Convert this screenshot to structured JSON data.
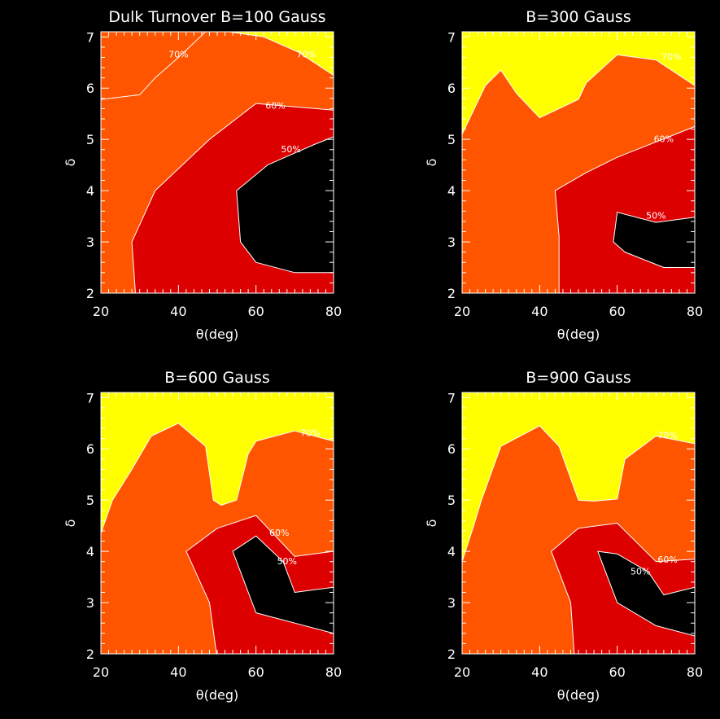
{
  "colors": {
    "background": "#000000",
    "lt50": "#000000",
    "c50_60": "#dd0000",
    "c60_70": "#ff5500",
    "gt70": "#ffff00",
    "axes": "#ffffff"
  },
  "chart_data": [
    {
      "type": "contour",
      "title": "Dulk Turnover B=100 Gauss",
      "xlabel": "θ(deg)",
      "ylabel": "δ",
      "xlim": [
        20,
        80
      ],
      "ylim": [
        2,
        7.1
      ],
      "xticks": [
        20,
        40,
        60,
        80
      ],
      "yticks": [
        2,
        3,
        4,
        5,
        6,
        7
      ],
      "levels": [
        "50%",
        "60%",
        "70%"
      ],
      "regions": {
        "gt70": [
          [
            20,
            5.78
          ],
          [
            30,
            5.87
          ],
          [
            34,
            6.2
          ],
          [
            40,
            6.6
          ],
          [
            47,
            7.1
          ],
          [
            80,
            7.1
          ],
          [
            80,
            6.25
          ],
          [
            71,
            6.7
          ],
          [
            62,
            7.0
          ],
          [
            53,
            7.1
          ],
          [
            47,
            7.1
          ],
          [
            40,
            6.6
          ],
          [
            34,
            6.2
          ],
          [
            30,
            5.87
          ],
          [
            20,
            5.78
          ],
          [
            20,
            7.1
          ]
        ],
        "lt60": [
          [
            29,
            1.9
          ],
          [
            28,
            3.0
          ],
          [
            34,
            4.0
          ],
          [
            48,
            5.0
          ],
          [
            60,
            5.7
          ],
          [
            80,
            5.57
          ],
          [
            80,
            1.9
          ]
        ],
        "lt50": [
          [
            80,
            1.9
          ],
          [
            80,
            5.05
          ],
          [
            75,
            4.9
          ],
          [
            63,
            4.5
          ],
          [
            55,
            4.0
          ],
          [
            56,
            3.0
          ],
          [
            60,
            2.6
          ],
          [
            70,
            2.4
          ],
          [
            80,
            2.4
          ]
        ]
      },
      "contour_labels": [
        {
          "text": "70%",
          "x": 40,
          "y": 6.6
        },
        {
          "text": "70%",
          "x": 73,
          "y": 6.6
        },
        {
          "text": "60%",
          "x": 65,
          "y": 5.6
        },
        {
          "text": "50%",
          "x": 69,
          "y": 4.75
        }
      ]
    },
    {
      "type": "contour",
      "title": "B=300 Gauss",
      "xlabel": "θ(deg)",
      "ylabel": "δ",
      "xlim": [
        20,
        80
      ],
      "ylim": [
        2,
        7.1
      ],
      "xticks": [
        20,
        40,
        60,
        80
      ],
      "yticks": [
        2,
        3,
        4,
        5,
        6,
        7
      ],
      "levels": [
        "50%",
        "60%",
        "70%"
      ],
      "regions": {
        "gt70": [
          [
            20,
            5.1
          ],
          [
            26,
            6.05
          ],
          [
            30,
            6.35
          ],
          [
            34,
            5.9
          ],
          [
            40,
            5.42
          ],
          [
            50,
            5.78
          ],
          [
            52,
            6.1
          ],
          [
            60,
            6.65
          ],
          [
            70,
            6.55
          ],
          [
            80,
            6.05
          ],
          [
            80,
            7.1
          ],
          [
            20,
            7.1
          ]
        ],
        "lt60": [
          [
            45,
            1.9
          ],
          [
            45,
            3.1
          ],
          [
            44,
            4.0
          ],
          [
            52,
            4.35
          ],
          [
            60,
            4.65
          ],
          [
            80,
            5.25
          ],
          [
            80,
            1.9
          ]
        ],
        "lt50": [
          [
            80,
            2.5
          ],
          [
            72,
            2.5
          ],
          [
            62,
            2.8
          ],
          [
            59,
            3.0
          ],
          [
            60,
            3.58
          ],
          [
            70,
            3.38
          ],
          [
            80,
            3.48
          ]
        ]
      },
      "contour_labels": [
        {
          "text": "70%",
          "x": 74,
          "y": 6.55
        },
        {
          "text": "60%",
          "x": 72,
          "y": 4.95
        },
        {
          "text": "50%",
          "x": 70,
          "y": 3.45
        }
      ]
    },
    {
      "type": "contour",
      "title": "B=600 Gauss",
      "xlabel": "θ(deg)",
      "ylabel": "δ",
      "xlim": [
        20,
        80
      ],
      "ylim": [
        2,
        7.1
      ],
      "xticks": [
        20,
        40,
        60,
        80
      ],
      "yticks": [
        2,
        3,
        4,
        5,
        6,
        7
      ],
      "levels": [
        "50%",
        "60%",
        "70%"
      ],
      "regions": {
        "gt70": [
          [
            20,
            4.35
          ],
          [
            23,
            5.0
          ],
          [
            28,
            5.6
          ],
          [
            33,
            6.25
          ],
          [
            40,
            6.5
          ],
          [
            47,
            6.05
          ],
          [
            49,
            5.0
          ],
          [
            51,
            4.9
          ],
          [
            55,
            5.0
          ],
          [
            58,
            5.9
          ],
          [
            60,
            6.15
          ],
          [
            70,
            6.35
          ],
          [
            80,
            6.15
          ],
          [
            80,
            7.1
          ],
          [
            20,
            7.1
          ]
        ],
        "lt60": [
          [
            50,
            1.9
          ],
          [
            48,
            3.0
          ],
          [
            42,
            4.0
          ],
          [
            50,
            4.45
          ],
          [
            60,
            4.7
          ],
          [
            70,
            3.9
          ],
          [
            80,
            4.0
          ],
          [
            80,
            1.9
          ]
        ],
        "lt50": [
          [
            54,
            4.0
          ],
          [
            60,
            4.3
          ],
          [
            67,
            3.8
          ],
          [
            70,
            3.2
          ],
          [
            80,
            3.3
          ],
          [
            80,
            2.4
          ],
          [
            70,
            2.6
          ],
          [
            60,
            2.8
          ]
        ]
      },
      "contour_labels": [
        {
          "text": "70%",
          "x": 74,
          "y": 6.25
        },
        {
          "text": "60%",
          "x": 66,
          "y": 4.3
        },
        {
          "text": "50%",
          "x": 68,
          "y": 3.75
        }
      ]
    },
    {
      "type": "contour",
      "title": "B=900 Gauss",
      "xlabel": "θ(deg)",
      "ylabel": "δ",
      "xlim": [
        20,
        80
      ],
      "ylim": [
        2,
        7.1
      ],
      "xticks": [
        20,
        40,
        60,
        80
      ],
      "yticks": [
        2,
        3,
        4,
        5,
        6,
        7
      ],
      "levels": [
        "50%",
        "60%",
        "70%"
      ],
      "regions": {
        "gt70": [
          [
            20,
            3.8
          ],
          [
            23,
            4.5
          ],
          [
            25,
            5.0
          ],
          [
            30,
            6.05
          ],
          [
            40,
            6.45
          ],
          [
            45,
            6.05
          ],
          [
            50,
            5.0
          ],
          [
            54,
            4.98
          ],
          [
            60,
            5.02
          ],
          [
            62,
            5.8
          ],
          [
            70,
            6.25
          ],
          [
            80,
            6.1
          ],
          [
            80,
            7.1
          ],
          [
            20,
            7.1
          ]
        ],
        "lt60": [
          [
            49,
            1.9
          ],
          [
            48,
            3.0
          ],
          [
            43,
            4.0
          ],
          [
            50,
            4.45
          ],
          [
            60,
            4.55
          ],
          [
            70,
            3.8
          ],
          [
            80,
            3.85
          ],
          [
            80,
            1.9
          ]
        ],
        "lt50": [
          [
            55,
            4.0
          ],
          [
            60,
            3.95
          ],
          [
            68,
            3.6
          ],
          [
            72,
            3.15
          ],
          [
            80,
            3.3
          ],
          [
            80,
            2.35
          ],
          [
            70,
            2.55
          ],
          [
            60,
            3.0
          ]
        ]
      },
      "contour_labels": [
        {
          "text": "70%",
          "x": 73,
          "y": 6.2
        },
        {
          "text": "60%",
          "x": 73,
          "y": 3.78
        },
        {
          "text": "50%",
          "x": 66,
          "y": 3.55
        }
      ]
    }
  ]
}
